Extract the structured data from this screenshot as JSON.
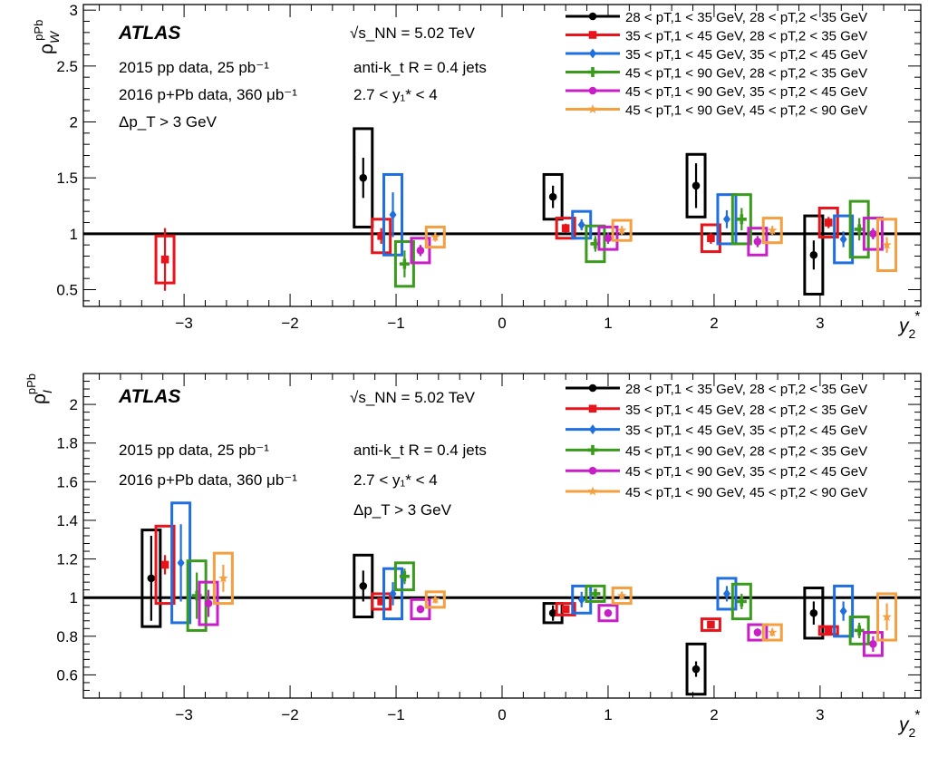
{
  "colors": {
    "s1": "#000000",
    "s2": "#e8141b",
    "s3": "#1f6fe0",
    "s4": "#3a9a1c",
    "s5": "#c81ec8",
    "s6": "#f4a040"
  },
  "chart_data": [
    {
      "type": "scatter",
      "panel": "top",
      "ylabel_main": "ρ",
      "ylabel_sup": "pPb",
      "ylabel_sub": "W",
      "xlabel": "y",
      "xlabel_sub": "2",
      "xlabel_sup": "*",
      "xlim": [
        -3.95,
        3.95
      ],
      "ylim": [
        0.35,
        3.05
      ],
      "xticks": [
        -3,
        -2,
        -1,
        0,
        1,
        2,
        3
      ],
      "xtick_labels": [
        "−3",
        "−2",
        "−1",
        "0",
        "1",
        "2",
        "3"
      ],
      "yticks": [
        0.5,
        1,
        1.5,
        2,
        2.5,
        3
      ],
      "ytick_labels": [
        "0.5",
        "1",
        "1.5",
        "2",
        "2.5",
        "3"
      ],
      "reference_line": 1,
      "annotations_left": {
        "experiment": "ATLAS",
        "line1": "2015 pp data, 25 pb⁻¹",
        "line2": "2016 p+Pb data, 360 μb⁻¹",
        "line3": "Δp_T > 3 GeV"
      },
      "annotations_mid": {
        "energy": "√s_NN = 5.02 TeV",
        "jets": "anti-k_t R = 0.4 jets",
        "rapidity": "2.7 < y₁* < 4"
      },
      "series": [
        {
          "name": "28 < pT,1 < 35 GeV,  28 < pT,2 < 35 GeV",
          "marker": "circle",
          "points": [
            {
              "x": -1.31,
              "y": 1.5,
              "stat": 0.18,
              "syst": 0.44
            },
            {
              "x": 0.48,
              "y": 1.33,
              "stat": 0.1,
              "syst": 0.2
            },
            {
              "x": 1.83,
              "y": 1.43,
              "stat": 0.2,
              "syst": 0.28
            },
            {
              "x": 2.94,
              "y": 0.81,
              "stat": 0.13,
              "syst": 0.35
            }
          ]
        },
        {
          "name": "35 < pT,1 < 45 GeV,  28 < pT,2 < 35 GeV",
          "marker": "square",
          "points": [
            {
              "x": -3.18,
              "y": 0.77,
              "stat": 0.28,
              "syst": 0.21
            },
            {
              "x": -1.14,
              "y": 0.98,
              "stat": 0.07,
              "syst": 0.15
            },
            {
              "x": 0.6,
              "y": 1.05,
              "stat": 0.04,
              "syst": 0.09
            },
            {
              "x": 1.97,
              "y": 0.96,
              "stat": 0.05,
              "syst": 0.12
            },
            {
              "x": 3.08,
              "y": 1.1,
              "stat": 0.05,
              "syst": 0.13
            }
          ]
        },
        {
          "name": "35 < pT,1 < 45 GeV,  35 < pT,2 < 45 GeV",
          "marker": "diamond",
          "points": [
            {
              "x": -1.03,
              "y": 1.17,
              "stat": 0.2,
              "syst": 0.36
            },
            {
              "x": 0.75,
              "y": 1.08,
              "stat": 0.05,
              "syst": 0.12
            },
            {
              "x": 2.12,
              "y": 1.13,
              "stat": 0.08,
              "syst": 0.22
            },
            {
              "x": 3.22,
              "y": 0.95,
              "stat": 0.07,
              "syst": 0.21
            }
          ]
        },
        {
          "name": "45 < pT,1 < 90 GeV,  28 < pT,2 < 35 GeV",
          "marker": "cross",
          "points": [
            {
              "x": -0.92,
              "y": 0.73,
              "stat": 0.12,
              "syst": 0.2
            },
            {
              "x": 0.88,
              "y": 0.91,
              "stat": 0.07,
              "syst": 0.16
            },
            {
              "x": 2.26,
              "y": 1.13,
              "stat": 0.1,
              "syst": 0.22
            },
            {
              "x": 3.37,
              "y": 1.04,
              "stat": 0.1,
              "syst": 0.25
            }
          ]
        },
        {
          "name": "45 < pT,1 < 90 GeV,  35 < pT,2 < 45 GeV",
          "marker": "circle",
          "points": [
            {
              "x": -0.77,
              "y": 0.85,
              "stat": 0.05,
              "syst": 0.11
            },
            {
              "x": 1.0,
              "y": 0.96,
              "stat": 0.05,
              "syst": 0.1
            },
            {
              "x": 2.41,
              "y": 0.93,
              "stat": 0.05,
              "syst": 0.12
            },
            {
              "x": 3.5,
              "y": 1.0,
              "stat": 0.05,
              "syst": 0.14
            }
          ]
        },
        {
          "name": "45 < pT,1 < 90 GeV,  45 < pT,2 < 90 GeV",
          "marker": "star",
          "points": [
            {
              "x": -0.63,
              "y": 0.97,
              "stat": 0.04,
              "syst": 0.09
            },
            {
              "x": 1.13,
              "y": 1.03,
              "stat": 0.04,
              "syst": 0.09
            },
            {
              "x": 2.55,
              "y": 1.03,
              "stat": 0.04,
              "syst": 0.11
            },
            {
              "x": 3.63,
              "y": 0.9,
              "stat": 0.07,
              "syst": 0.23
            }
          ]
        }
      ]
    },
    {
      "type": "scatter",
      "panel": "bottom",
      "ylabel_main": "ρ",
      "ylabel_sup": "pPb",
      "ylabel_sub": "I",
      "xlabel": "y",
      "xlabel_sub": "2",
      "xlabel_sup": "*",
      "xlim": [
        -3.95,
        3.95
      ],
      "ylim": [
        0.48,
        2.16
      ],
      "xticks": [
        -3,
        -2,
        -1,
        0,
        1,
        2,
        3
      ],
      "xtick_labels": [
        "−3",
        "−2",
        "−1",
        "0",
        "1",
        "2",
        "3"
      ],
      "yticks": [
        0.6,
        0.8,
        1,
        1.2,
        1.4,
        1.6,
        1.8,
        2
      ],
      "ytick_labels": [
        "0.6",
        "0.8",
        "1",
        "1.2",
        "1.4",
        "1.6",
        "1.8",
        "2"
      ],
      "reference_line": 1,
      "annotations_left": {
        "experiment": "ATLAS",
        "line1": "2015 pp data, 25 pb⁻¹",
        "line2": "2016 p+Pb data, 360 μb⁻¹"
      },
      "annotations_mid": {
        "energy": "√s_NN = 5.02 TeV",
        "jets": "anti-k_t R = 0.4 jets",
        "rapidity": "2.7 < y₁* < 4",
        "cut": "Δp_T > 3 GeV"
      },
      "series": [
        {
          "name": "28 < pT,1 < 35 GeV,  28 < pT,2 < 35 GeV",
          "marker": "circle",
          "points": [
            {
              "x": -3.31,
              "y": 1.1,
              "stat": 0.22,
              "syst": 0.25
            },
            {
              "x": -1.31,
              "y": 1.06,
              "stat": 0.08,
              "syst": 0.16
            },
            {
              "x": 0.48,
              "y": 0.92,
              "stat": 0.04,
              "syst": 0.05
            },
            {
              "x": 1.83,
              "y": 0.63,
              "stat": 0.04,
              "syst": 0.13
            },
            {
              "x": 2.94,
              "y": 0.92,
              "stat": 0.06,
              "syst": 0.13
            }
          ]
        },
        {
          "name": "35 < pT,1 < 45 GeV,  28 < pT,2 < 35 GeV",
          "marker": "square",
          "points": [
            {
              "x": -3.18,
              "y": 1.17,
              "stat": 0.05,
              "syst": 0.2
            },
            {
              "x": -1.14,
              "y": 0.98,
              "stat": 0.02,
              "syst": 0.04
            },
            {
              "x": 0.6,
              "y": 0.94,
              "stat": 0.01,
              "syst": 0.03
            },
            {
              "x": 1.97,
              "y": 0.86,
              "stat": 0.01,
              "syst": 0.03
            },
            {
              "x": 3.08,
              "y": 0.83,
              "stat": 0.01,
              "syst": 0.02
            }
          ]
        },
        {
          "name": "35 < pT,1 < 45 GeV,  35 < pT,2 < 45 GeV",
          "marker": "diamond",
          "points": [
            {
              "x": -3.03,
              "y": 1.18,
              "stat": 0.2,
              "syst": 0.31
            },
            {
              "x": -1.03,
              "y": 1.02,
              "stat": 0.06,
              "syst": 0.13
            },
            {
              "x": 0.75,
              "y": 0.99,
              "stat": 0.04,
              "syst": 0.07
            },
            {
              "x": 2.12,
              "y": 1.02,
              "stat": 0.04,
              "syst": 0.08
            },
            {
              "x": 3.22,
              "y": 0.93,
              "stat": 0.05,
              "syst": 0.13
            }
          ]
        },
        {
          "name": "45 < pT,1 < 90 GeV,  28 < pT,2 < 35 GeV",
          "marker": "cross",
          "points": [
            {
              "x": -2.88,
              "y": 1.01,
              "stat": 0.12,
              "syst": 0.18
            },
            {
              "x": -0.92,
              "y": 1.11,
              "stat": 0.04,
              "syst": 0.07
            },
            {
              "x": 0.88,
              "y": 1.02,
              "stat": 0.02,
              "syst": 0.04
            },
            {
              "x": 2.26,
              "y": 0.98,
              "stat": 0.04,
              "syst": 0.09
            },
            {
              "x": 3.37,
              "y": 0.83,
              "stat": 0.04,
              "syst": 0.07
            }
          ]
        },
        {
          "name": "45 < pT,1 < 90 GeV,  35 < pT,2 < 45 GeV",
          "marker": "circle",
          "points": [
            {
              "x": -2.77,
              "y": 0.97,
              "stat": 0.07,
              "syst": 0.11
            },
            {
              "x": -0.77,
              "y": 0.94,
              "stat": 0.02,
              "syst": 0.05
            },
            {
              "x": 1.0,
              "y": 0.92,
              "stat": 0.02,
              "syst": 0.04
            },
            {
              "x": 2.41,
              "y": 0.82,
              "stat": 0.02,
              "syst": 0.04
            },
            {
              "x": 3.5,
              "y": 0.76,
              "stat": 0.04,
              "syst": 0.06
            }
          ]
        },
        {
          "name": "45 < pT,1 < 90 GeV,  45 < pT,2 < 90 GeV",
          "marker": "star",
          "points": [
            {
              "x": -2.63,
              "y": 1.1,
              "stat": 0.07,
              "syst": 0.13
            },
            {
              "x": -0.63,
              "y": 0.99,
              "stat": 0.02,
              "syst": 0.04
            },
            {
              "x": 1.13,
              "y": 1.01,
              "stat": 0.02,
              "syst": 0.04
            },
            {
              "x": 2.55,
              "y": 0.82,
              "stat": 0.02,
              "syst": 0.04
            },
            {
              "x": 3.63,
              "y": 0.9,
              "stat": 0.07,
              "syst": 0.12
            }
          ]
        }
      ]
    }
  ]
}
